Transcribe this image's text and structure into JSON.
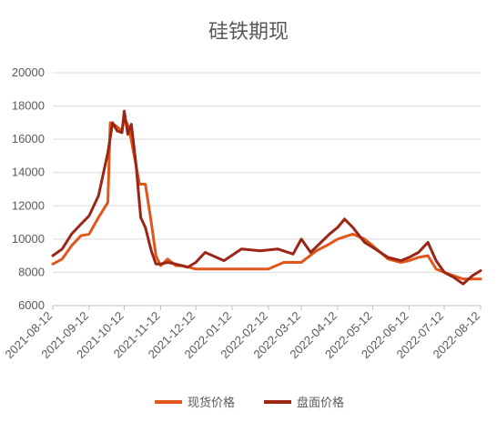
{
  "chart_data": {
    "type": "line",
    "title": "硅铁期现",
    "xlabel": "",
    "ylabel": "",
    "ylim": [
      6000,
      20000
    ],
    "yticks": [
      6000,
      8000,
      10000,
      12000,
      14000,
      16000,
      18000,
      20000
    ],
    "xticks": [
      "2021-08-12",
      "2021-09-12",
      "2021-10-12",
      "2021-11-12",
      "2021-12-12",
      "2022-01-12",
      "2022-02-12",
      "2022-03-12",
      "2022-04-12",
      "2022-05-12",
      "2022-06-12",
      "2022-07-12",
      "2022-08-12"
    ],
    "grid": "horizontal",
    "legend_position": "bottom",
    "series": [
      {
        "name": "现货价格",
        "color": "#E0561B",
        "x": [
          "2021-08-12",
          "2021-08-20",
          "2021-08-28",
          "2021-09-05",
          "2021-09-12",
          "2021-09-20",
          "2021-09-28",
          "2021-09-30",
          "2021-10-05",
          "2021-10-10",
          "2021-10-12",
          "2021-10-16",
          "2021-10-20",
          "2021-10-25",
          "2021-10-30",
          "2021-11-04",
          "2021-11-08",
          "2021-11-12",
          "2021-11-18",
          "2021-11-25",
          "2021-12-01",
          "2021-12-12",
          "2021-12-25",
          "2022-01-12",
          "2022-01-25",
          "2022-02-12",
          "2022-02-25",
          "2022-03-12",
          "2022-03-25",
          "2022-04-05",
          "2022-04-12",
          "2022-04-25",
          "2022-05-05",
          "2022-05-12",
          "2022-05-25",
          "2022-06-05",
          "2022-06-12",
          "2022-06-20",
          "2022-06-28",
          "2022-07-05",
          "2022-07-12",
          "2022-07-20",
          "2022-07-28",
          "2022-08-05",
          "2022-08-12"
        ],
        "values": [
          8500,
          8800,
          9600,
          10200,
          10300,
          11300,
          12200,
          17000,
          16800,
          16500,
          17300,
          16700,
          15200,
          13300,
          13300,
          11000,
          9000,
          8400,
          8800,
          8400,
          8400,
          8200,
          8200,
          8200,
          8200,
          8200,
          8600,
          8600,
          9300,
          9700,
          10000,
          10300,
          10000,
          9600,
          8800,
          8600,
          8700,
          8900,
          9000,
          8200,
          8000,
          7800,
          7600,
          7600,
          7600
        ]
      },
      {
        "name": "盘面价格",
        "color": "#9B2616",
        "x": [
          "2021-08-12",
          "2021-08-20",
          "2021-08-28",
          "2021-09-05",
          "2021-09-12",
          "2021-09-20",
          "2021-09-28",
          "2021-10-02",
          "2021-10-06",
          "2021-10-10",
          "2021-10-12",
          "2021-10-15",
          "2021-10-18",
          "2021-10-22",
          "2021-10-26",
          "2021-10-30",
          "2021-11-04",
          "2021-11-08",
          "2021-11-12",
          "2021-11-18",
          "2021-11-25",
          "2021-12-05",
          "2021-12-12",
          "2021-12-20",
          "2022-01-05",
          "2022-01-20",
          "2022-02-05",
          "2022-02-20",
          "2022-03-05",
          "2022-03-12",
          "2022-03-20",
          "2022-04-05",
          "2022-04-12",
          "2022-04-18",
          "2022-04-25",
          "2022-05-05",
          "2022-05-12",
          "2022-05-25",
          "2022-06-05",
          "2022-06-12",
          "2022-06-20",
          "2022-06-28",
          "2022-07-05",
          "2022-07-12",
          "2022-07-20",
          "2022-07-28",
          "2022-08-05",
          "2022-08-12"
        ],
        "values": [
          9000,
          9400,
          10300,
          10900,
          11400,
          12600,
          15200,
          17000,
          16500,
          16400,
          17700,
          16300,
          16900,
          14500,
          11300,
          10700,
          9300,
          8500,
          8500,
          8600,
          8500,
          8300,
          8600,
          9200,
          8700,
          9400,
          9300,
          9400,
          9100,
          10000,
          9200,
          10300,
          10700,
          11200,
          10700,
          9800,
          9500,
          8900,
          8700,
          8900,
          9200,
          9800,
          8700,
          8000,
          7700,
          7300,
          7800,
          8100
        ]
      }
    ]
  }
}
